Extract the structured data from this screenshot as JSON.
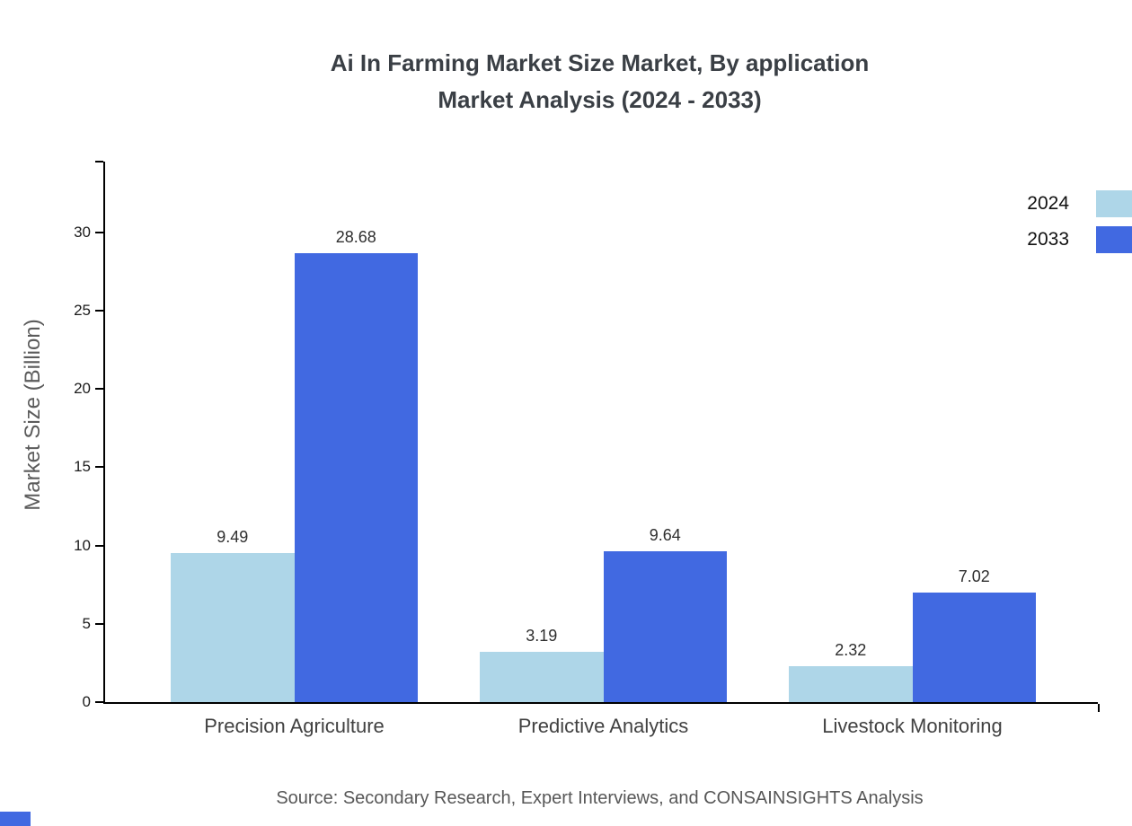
{
  "title": {
    "line1": "Ai In Farming Market Size Market, By application",
    "line2": "Market Analysis (2024 - 2033)"
  },
  "source": "Source: Secondary Research, Expert Interviews, and CONSAINSIGHTS Analysis",
  "colors": {
    "series_2024": "#aed6e8",
    "series_2033": "#4169e1"
  },
  "chart_data": {
    "type": "bar",
    "categories": [
      "Precision Agriculture",
      "Predictive Analytics",
      "Livestock Monitoring"
    ],
    "series": [
      {
        "name": "2024",
        "values": [
          9.49,
          3.19,
          2.32
        ],
        "color": "#aed6e8"
      },
      {
        "name": "2033",
        "values": [
          28.68,
          9.64,
          7.02
        ],
        "color": "#4169e1"
      }
    ],
    "title": "Ai In Farming Market Size Market, By application Market Analysis (2024 - 2033)",
    "xlabel": "",
    "ylabel": "Market Size (Billion)",
    "ylim": [
      0,
      34.5
    ],
    "yticks": [
      0,
      5,
      10,
      15,
      20,
      25,
      30
    ],
    "grid": false,
    "legend_position": "top-right"
  }
}
